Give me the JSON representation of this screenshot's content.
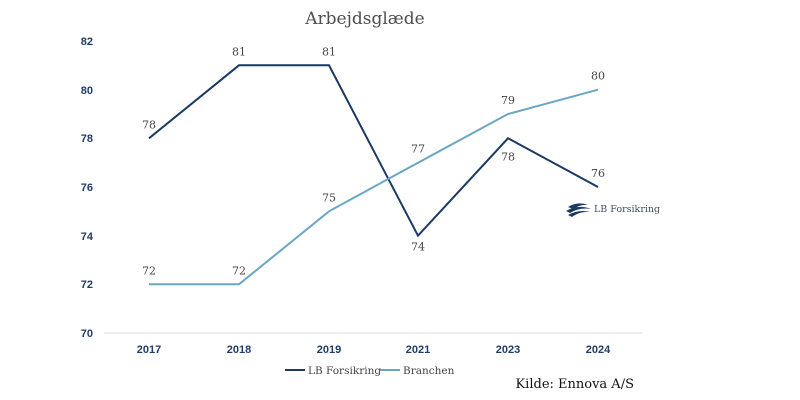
{
  "chart_data": {
    "type": "line",
    "title": "Arbejdsglæde",
    "categories": [
      "2017",
      "2018",
      "2019",
      "2021",
      "2023",
      "2024"
    ],
    "series": [
      {
        "name": "LB Forsikring",
        "color": "#1a3a63",
        "values": [
          78,
          81,
          81,
          74,
          78,
          76
        ]
      },
      {
        "name": "Branchen",
        "color": "#6aa6c4",
        "values": [
          72,
          72,
          75,
          77,
          79,
          80
        ]
      }
    ],
    "ylim": [
      70,
      82
    ],
    "yticks": [
      "82",
      "80",
      "78",
      "76",
      "74",
      "72",
      "70"
    ],
    "grid": false,
    "legend": "bottom"
  },
  "logo": {
    "text": "LB Forsikring"
  },
  "source": "Kilde: Ennova A/S"
}
